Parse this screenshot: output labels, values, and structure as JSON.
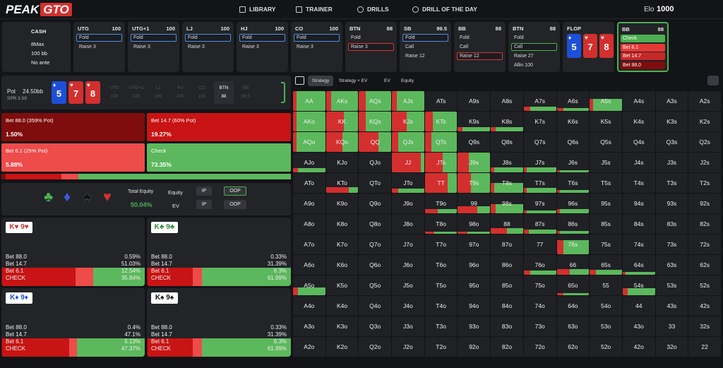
{
  "nav": {
    "logo_a": "PEAK",
    "logo_b": "GTO",
    "links": [
      "LIBRARY",
      "TRAINER",
      "DRILLS",
      "DRILL OF THE DAY"
    ],
    "elo_label": "Elo",
    "elo": "1000"
  },
  "settings": [
    "CASH",
    "8Max",
    "100 bb",
    "No ante"
  ],
  "actions": [
    {
      "pos": "UTG",
      "stack": "100",
      "options": [
        "Fold",
        "Raise 3"
      ],
      "selected": 0,
      "selected_color": "#4a8fe0"
    },
    {
      "pos": "UTG+1",
      "stack": "100",
      "options": [
        "Fold",
        "Raise 3"
      ],
      "selected": 0,
      "selected_color": "#4a8fe0"
    },
    {
      "pos": "LJ",
      "stack": "100",
      "options": [
        "Fold",
        "Raise 3"
      ],
      "selected": 0,
      "selected_color": "#4a8fe0"
    },
    {
      "pos": "HJ",
      "stack": "100",
      "options": [
        "Fold",
        "Raise 3"
      ],
      "selected": 0,
      "selected_color": "#4a8fe0"
    },
    {
      "pos": "CO",
      "stack": "100",
      "options": [
        "Fold",
        "Raise 3"
      ],
      "selected": 0,
      "selected_color": "#4a8fe0"
    },
    {
      "pos": "BTN",
      "stack": "88",
      "options": [
        "Fold",
        "Raise 3"
      ],
      "selected": 1,
      "selected_color": "#e03030"
    },
    {
      "pos": "SB",
      "stack": "99.5",
      "options": [
        "Fold",
        "Call",
        "Raise 12"
      ],
      "selected": 0,
      "selected_color": "#4a8fe0"
    },
    {
      "pos": "BB",
      "stack": "88",
      "options": [
        "Fold",
        "Call",
        "Raise 12"
      ],
      "selected": 2,
      "selected_color": "#e03030"
    },
    {
      "pos": "BTN",
      "stack": "88",
      "options": [
        "Fold",
        "Call",
        "Raise 27",
        "Allin 100"
      ],
      "selected": 1,
      "selected_color": "#4caf50"
    }
  ],
  "flop": {
    "label": "FLOP",
    "cards": [
      {
        "rank": "5",
        "suit": "♦",
        "color": "#1e4fd8"
      },
      {
        "rank": "7",
        "suit": "♥",
        "color": "#d32f2f"
      },
      {
        "rank": "8",
        "suit": "♥",
        "color": "#d32f2f"
      }
    ]
  },
  "current": {
    "pos": "BB",
    "stack": "88",
    "options": [
      "Check",
      "Bet 6.1",
      "Bet 14.7",
      "Bet 88.0"
    ],
    "option_colors": [
      "#4caf50",
      "#e53935",
      "#c62828",
      "#7f0d0d"
    ]
  },
  "pot": {
    "label": "Pot",
    "value": "24.50bb",
    "spr": "SPR 3.59",
    "positions": [
      {
        "pos": "UTG",
        "stack": "100"
      },
      {
        "pos": "UTG+1",
        "stack": "100"
      },
      {
        "pos": "LJ",
        "stack": "100"
      },
      {
        "pos": "HJ",
        "stack": "100"
      },
      {
        "pos": "CO",
        "stack": "100"
      },
      {
        "pos": "BTN",
        "stack": "88"
      },
      {
        "pos": "SB",
        "stack": "99.5"
      }
    ],
    "active": [
      5
    ]
  },
  "strategy": {
    "actions": [
      "Bet 88.0 (359% Pot)",
      "Bet 14.7 (60% Pot)",
      "Bet 6.1 (25% Pot)",
      "Check"
    ],
    "colors": [
      "#7f0d0d",
      "#c81414",
      "#ee4b4b",
      "#5cb85c"
    ],
    "values": [
      1.5,
      19.27,
      5.88,
      73.35
    ],
    "value_labels": [
      "1.50%",
      "19.27%",
      "5.88%",
      "73.35%"
    ]
  },
  "equity": {
    "suits": [
      {
        "symbol": "♣",
        "color": "#4caf50"
      },
      {
        "symbol": "♦",
        "color": "#3a5bd9"
      },
      {
        "symbol": "♠",
        "color": "#111111"
      },
      {
        "symbol": "♥",
        "color": "#d32f2f"
      }
    ],
    "total_label": "Total Equity",
    "total": "50.04%",
    "rows": [
      {
        "label": "Equity",
        "buttons": [
          "IP",
          "OOP"
        ]
      },
      {
        "label": "EV",
        "buttons": [
          "IP",
          "OOP"
        ]
      }
    ]
  },
  "hands": [
    {
      "ranks": [
        "K",
        "9"
      ],
      "suit": "♥",
      "color": "#d32f2f",
      "actions": [
        "Bet 88.0",
        "Bet 14.7",
        "Bet 6.1",
        "CHECK"
      ],
      "values": [
        0.59,
        51.03,
        12.54,
        35.84
      ],
      "value_labels": [
        "0.59%",
        "51.03%",
        "12.54%",
        "35.84%"
      ]
    },
    {
      "ranks": [
        "K",
        "9"
      ],
      "suit": "♣",
      "color": "#2e8b3a",
      "actions": [
        "Bet 88.0",
        "Bet 14.7",
        "Bet 6.1",
        "CHECK"
      ],
      "values": [
        0.33,
        31.39,
        6.3,
        61.99
      ],
      "value_labels": [
        "0.33%",
        "31.39%",
        "6.3%",
        "61.99%"
      ]
    },
    {
      "ranks": [
        "K",
        "9"
      ],
      "suit": "♦",
      "color": "#1e4fd8",
      "actions": [
        "Bet 88.0",
        "Bet 14.7",
        "Bet 6.1",
        "CHECK"
      ],
      "values": [
        0.4,
        47.1,
        5.13,
        47.37
      ],
      "value_labels": [
        "0.4%",
        "47.1%",
        "5.13%",
        "47.37%"
      ]
    },
    {
      "ranks": [
        "K",
        "9"
      ],
      "suit": "♠",
      "color": "#111111",
      "actions": [
        "Bet 88.0",
        "Bet 14.7",
        "Bet 6.1",
        "CHECK"
      ],
      "values": [
        0.33,
        31.39,
        6.3,
        61.99
      ],
      "value_labels": [
        "0.33%",
        "31.39%",
        "6.3%",
        "61.99%"
      ]
    }
  ],
  "grid": {
    "tabs": [
      "Strategy",
      "Strategy + EV",
      "EV",
      "Equity"
    ],
    "active": 0,
    "bet_color": "#d32f2f",
    "check_color": "#5cb85c",
    "hands": [
      [
        "AA",
        "AKs",
        "AQs",
        "AJs",
        "ATs",
        "A9s",
        "A8s",
        "A7s",
        "A6s",
        "A5s",
        "A4s",
        "A3s",
        "A2s"
      ],
      [
        "AKo",
        "KK",
        "KQs",
        "KJs",
        "KTs",
        "K9s",
        "K8s",
        "K7s",
        "K6s",
        "K5s",
        "K4s",
        "K3s",
        "K2s"
      ],
      [
        "AQo",
        "KQo",
        "QQ",
        "QJs",
        "QTs",
        "Q9s",
        "Q8s",
        "Q7s",
        "Q6s",
        "Q5s",
        "Q4s",
        "Q3s",
        "Q2s"
      ],
      [
        "AJo",
        "KJo",
        "QJo",
        "JJ",
        "JTs",
        "J9s",
        "J8s",
        "J7s",
        "J6s",
        "J5s",
        "J4s",
        "J3s",
        "J2s"
      ],
      [
        "ATo",
        "KTo",
        "QTo",
        "JTo",
        "TT",
        "T9s",
        "T8s",
        "T7s",
        "T6s",
        "T5s",
        "T4s",
        "T3s",
        "T2s"
      ],
      [
        "A9o",
        "K9o",
        "Q9o",
        "J9o",
        "T9o",
        "99",
        "98s",
        "97s",
        "96s",
        "95s",
        "94s",
        "93s",
        "92s"
      ],
      [
        "A8o",
        "K8o",
        "Q8o",
        "J8o",
        "T8o",
        "98o",
        "88",
        "87s",
        "86s",
        "85s",
        "84s",
        "83s",
        "82s"
      ],
      [
        "A7o",
        "K7o",
        "Q7o",
        "J7o",
        "T7o",
        "97o",
        "87o",
        "77",
        "76s",
        "75s",
        "74s",
        "73s",
        "72s"
      ],
      [
        "A6o",
        "K6o",
        "Q6o",
        "J6o",
        "T6o",
        "96o",
        "86o",
        "76o",
        "66",
        "65s",
        "64s",
        "63s",
        "62s"
      ],
      [
        "A5o",
        "K5o",
        "Q5o",
        "J5o",
        "T5o",
        "95o",
        "85o",
        "75o",
        "65o",
        "55",
        "54s",
        "53s",
        "52s"
      ],
      [
        "A4o",
        "K4o",
        "Q4o",
        "J4o",
        "T4o",
        "94o",
        "84o",
        "74o",
        "64o",
        "54o",
        "44",
        "43s",
        "42s"
      ],
      [
        "A3o",
        "K3o",
        "Q3o",
        "J3o",
        "T3o",
        "93o",
        "83o",
        "73o",
        "63o",
        "53o",
        "43o",
        "33",
        "32s"
      ],
      [
        "A2o",
        "K2o",
        "Q2o",
        "J2o",
        "T2o",
        "92o",
        "82o",
        "72o",
        "62o",
        "52o",
        "42o",
        "32o",
        "22"
      ]
    ],
    "weights": [
      [
        100,
        100,
        100,
        100,
        0,
        0,
        0,
        20,
        15,
        60,
        0,
        0,
        0
      ],
      [
        100,
        100,
        100,
        100,
        100,
        20,
        20,
        0,
        0,
        0,
        0,
        0,
        0
      ],
      [
        100,
        100,
        100,
        100,
        100,
        0,
        0,
        0,
        0,
        0,
        0,
        0,
        0
      ],
      [
        20,
        0,
        0,
        100,
        100,
        100,
        25,
        25,
        10,
        0,
        0,
        0,
        0
      ],
      [
        0,
        30,
        0,
        20,
        100,
        100,
        50,
        25,
        15,
        0,
        0,
        0,
        0
      ],
      [
        0,
        0,
        0,
        0,
        20,
        35,
        45,
        15,
        20,
        0,
        0,
        0,
        0
      ],
      [
        0,
        0,
        0,
        0,
        10,
        10,
        30,
        20,
        15,
        0,
        0,
        0,
        0
      ],
      [
        0,
        0,
        0,
        0,
        0,
        0,
        0,
        0,
        70,
        0,
        0,
        0,
        0
      ],
      [
        0,
        0,
        0,
        0,
        0,
        0,
        0,
        20,
        30,
        25,
        15,
        0,
        0
      ],
      [
        40,
        0,
        0,
        0,
        0,
        0,
        0,
        0,
        10,
        0,
        35,
        0,
        0
      ],
      [
        0,
        0,
        0,
        0,
        0,
        0,
        0,
        0,
        0,
        0,
        0,
        0,
        0
      ],
      [
        0,
        0,
        0,
        0,
        0,
        0,
        0,
        0,
        0,
        0,
        0,
        0,
        0
      ],
      [
        0,
        0,
        0,
        0,
        0,
        0,
        0,
        0,
        0,
        0,
        0,
        0,
        0
      ]
    ],
    "bet_share": [
      [
        12,
        15,
        20,
        15,
        0,
        0,
        0,
        20,
        20,
        10,
        0,
        0,
        0
      ],
      [
        10,
        55,
        20,
        45,
        25,
        15,
        15,
        0,
        0,
        0,
        0,
        0,
        0
      ],
      [
        10,
        50,
        60,
        20,
        20,
        0,
        0,
        0,
        0,
        0,
        0,
        0,
        0
      ],
      [
        15,
        0,
        0,
        90,
        55,
        35,
        10,
        10,
        10,
        0,
        0,
        0,
        0
      ],
      [
        0,
        70,
        0,
        20,
        70,
        40,
        10,
        10,
        10,
        0,
        0,
        0,
        0
      ],
      [
        0,
        0,
        0,
        0,
        40,
        60,
        15,
        10,
        10,
        0,
        0,
        0,
        0
      ],
      [
        0,
        0,
        0,
        0,
        30,
        30,
        50,
        15,
        10,
        0,
        0,
        0,
        0
      ],
      [
        0,
        0,
        0,
        0,
        0,
        0,
        0,
        0,
        20,
        0,
        0,
        0,
        0
      ],
      [
        0,
        0,
        0,
        0,
        0,
        0,
        0,
        20,
        40,
        20,
        10,
        0,
        0
      ],
      [
        15,
        0,
        0,
        0,
        0,
        0,
        0,
        0,
        20,
        0,
        15,
        0,
        0
      ],
      [
        0,
        0,
        0,
        0,
        0,
        0,
        0,
        0,
        0,
        0,
        0,
        0,
        0
      ],
      [
        0,
        0,
        0,
        0,
        0,
        0,
        0,
        0,
        0,
        0,
        0,
        0,
        0
      ],
      [
        0,
        0,
        0,
        0,
        0,
        0,
        0,
        0,
        0,
        0,
        0,
        0,
        0
      ]
    ]
  }
}
